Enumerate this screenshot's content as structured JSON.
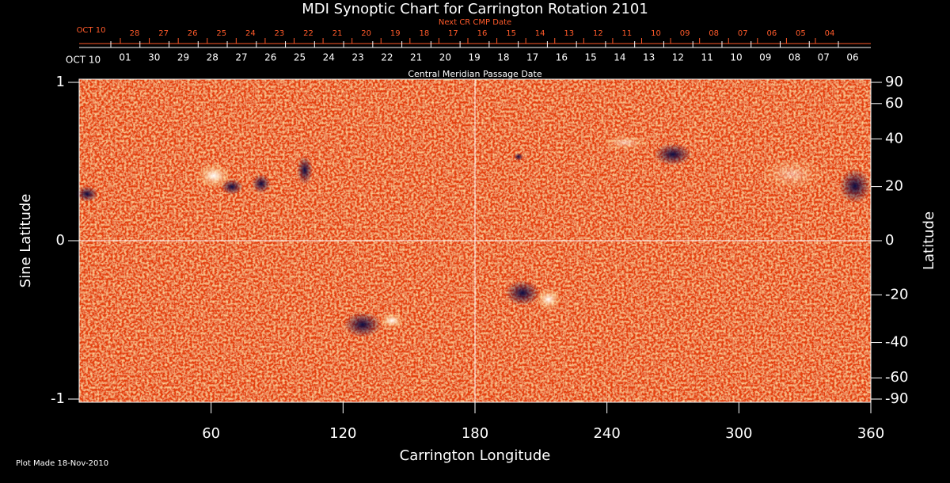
{
  "chart_data": {
    "type": "synoptic-map",
    "title": "MDI Synoptic Chart for Carrington Rotation 2101",
    "xlabel": "Carrington Longitude",
    "ylabel": "Sine Latitude",
    "y2label": "Latitude",
    "xlim": [
      0,
      360
    ],
    "xticks": [
      60,
      120,
      180,
      240,
      300,
      360
    ],
    "ylim": [
      -1,
      1
    ],
    "yticks": [
      -1,
      0,
      1
    ],
    "y2lim": [
      -90,
      90
    ],
    "y2scale": "sine",
    "y2ticks": [
      90,
      60,
      40,
      20,
      0,
      -20,
      -40,
      -60,
      -90
    ],
    "cmp_axis_label": "Central Meridian Passage Date",
    "cmp_start": "OCT 10",
    "cmp_dates": [
      "01",
      "30",
      "29",
      "28",
      "27",
      "26",
      "25",
      "24",
      "23",
      "22",
      "21",
      "20",
      "19",
      "18",
      "17",
      "16",
      "15",
      "14",
      "13",
      "12",
      "11",
      "10",
      "09",
      "08",
      "07",
      "06"
    ],
    "next_axis_label": "Next CR CMP Date",
    "next_start": "OCT 10",
    "next_dates": [
      "28",
      "27",
      "26",
      "25",
      "24",
      "23",
      "22",
      "21",
      "20",
      "19",
      "18",
      "17",
      "16",
      "15",
      "14",
      "13",
      "12",
      "11",
      "10",
      "09",
      "08",
      "07",
      "06",
      "05",
      "04"
    ],
    "footnote": "Plot Made 18-Nov-2010"
  }
}
